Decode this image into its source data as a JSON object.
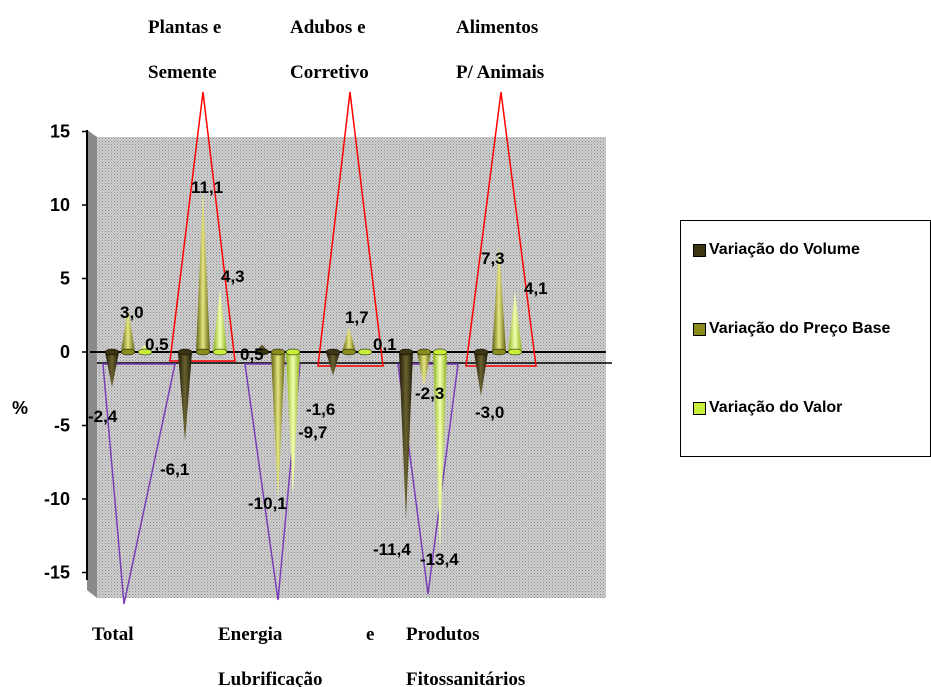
{
  "chart_data": {
    "type": "bar",
    "ylabel": "%",
    "ylim": [
      -15,
      15
    ],
    "yticks": [
      "15",
      "10",
      "5",
      "0",
      "-5",
      "-10",
      "-15"
    ],
    "categories": [
      {
        "top": "",
        "top2": "",
        "bottom": "Total",
        "bottom2": ""
      },
      {
        "top": "Plantas e",
        "top2": "Semente",
        "bottom": "",
        "bottom2": ""
      },
      {
        "top": "",
        "top2": "",
        "bottom": "Energia",
        "bottom_e": "e",
        "bottom2": "Lubrificação"
      },
      {
        "top": "Adubos  e",
        "top2": "Corretivo",
        "bottom": "",
        "bottom2": ""
      },
      {
        "top": "",
        "top2": "",
        "bottom": "Produtos",
        "bottom2": "Fitossanitários"
      },
      {
        "top": "Alimentos",
        "top2": "P/ Animais",
        "bottom": "",
        "bottom2": ""
      }
    ],
    "series": [
      {
        "name": "Variação do Volume",
        "color": "#3b3514",
        "values": [
          -2.4,
          -6.1,
          0.5,
          -1.6,
          -11.4,
          -3.0
        ]
      },
      {
        "name": "Variação do Preço Base",
        "color": "#8c8c1c",
        "values": [
          3.0,
          11.1,
          -10.1,
          1.7,
          -2.3,
          7.3
        ]
      },
      {
        "name": "Variação do Valor",
        "color": "#c8ee3c",
        "values": [
          0.5,
          4.3,
          -9.7,
          0.1,
          -13.4,
          4.1
        ]
      }
    ],
    "data_labels": [
      [
        "-2,4",
        "-6,1",
        "0,5",
        "-1,6",
        "-11,4",
        "-3,0"
      ],
      [
        "3,0",
        "11,1",
        "-10,1",
        "1,7",
        "-2,3",
        "7,3"
      ],
      [
        "0,5",
        "4,3",
        "-9,7",
        "0,1",
        "-13,4",
        "4,1"
      ]
    ],
    "legend_position": "right",
    "grid": false
  }
}
